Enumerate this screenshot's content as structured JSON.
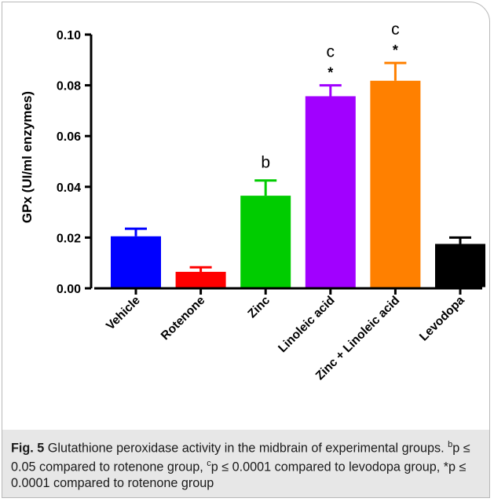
{
  "chart_data": {
    "type": "bar",
    "ylabel": "GPx (UI/ml enzymes)",
    "ylim": [
      0,
      0.1
    ],
    "yticks": [
      "0.00",
      "0.02",
      "0.04",
      "0.06",
      "0.08",
      "0.10"
    ],
    "ytick_values": [
      0,
      0.02,
      0.04,
      0.06,
      0.08,
      0.1
    ],
    "categories": [
      "Vehicle",
      "Rotenone",
      "Zinc",
      "Linoleic acid",
      "Zinc + Linoleic acid",
      "Levodopa"
    ],
    "values": [
      0.0205,
      0.0065,
      0.0365,
      0.0757,
      0.0818,
      0.0175
    ],
    "errors": [
      0.003,
      0.0018,
      0.006,
      0.0043,
      0.007,
      0.0025
    ],
    "colors": [
      "#0000ff",
      "#ff0000",
      "#00cc00",
      "#a100ff",
      "#ff8000",
      "#000000"
    ],
    "annotations": [
      {
        "category": "Zinc",
        "labels": [
          "b"
        ]
      },
      {
        "category": "Linoleic acid",
        "labels": [
          "c",
          "*"
        ]
      },
      {
        "category": "Zinc + Linoleic acid",
        "labels": [
          "c",
          "*"
        ]
      }
    ],
    "grid": false
  },
  "caption": {
    "fig_label": "Fig. 5",
    "text_1": "  Glutathione peroxidase activity in the midbrain of experimental groups. ",
    "sup_b": "b",
    "text_2": "p ≤ 0.05 compared to rotenone group, ",
    "sup_c": "c",
    "text_3": "p ≤ 0.0001 compared to levodopa group, *p ≤ 0.0001 compared to rotenone group"
  }
}
